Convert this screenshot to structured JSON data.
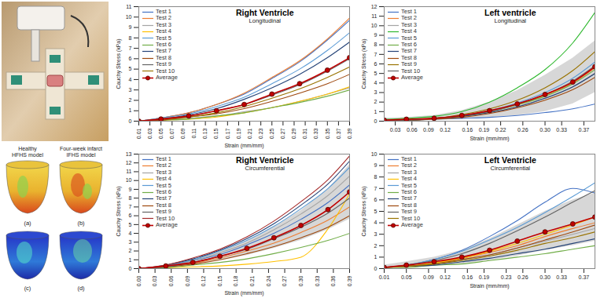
{
  "model_panels": {
    "top_labels": [
      [
        "Healthy",
        "HFHS model"
      ],
      [
        "Four-week infarct",
        "IFHS model"
      ]
    ],
    "panel_labels": [
      "(a)",
      "(b)",
      "(c)",
      "(d)"
    ]
  },
  "chart_data": [
    {
      "type": "line",
      "title": "Right Ventricle",
      "subtitle": "Longitudinal",
      "x_label": "Strain (mm/mm)",
      "y_label": "Cauchy Stress (kPa)",
      "x": [
        0.01,
        0.05,
        0.1,
        0.15,
        0.2,
        0.25,
        0.3,
        0.35,
        0.39
      ],
      "xlim": [
        0.01,
        0.39
      ],
      "xticks": [
        0.01,
        0.03,
        0.05,
        0.07,
        0.09,
        0.11,
        0.13,
        0.15,
        0.17,
        0.19,
        0.21,
        0.23,
        0.25,
        0.27,
        0.29,
        0.31,
        0.33,
        0.35,
        0.37,
        0.39
      ],
      "ylim": [
        0,
        11
      ],
      "yticks": [
        0,
        1,
        2,
        3,
        4,
        5,
        6,
        7,
        8,
        9,
        10,
        11
      ],
      "grid": false,
      "legend": "top-left",
      "series": [
        {
          "name": "Test 1",
          "color": "#4472c4",
          "values": [
            0,
            0.3,
            0.8,
            1.6,
            2.6,
            4.1,
            5.7,
            7.8,
            9.7
          ]
        },
        {
          "name": "Test 2",
          "color": "#ed7d31",
          "values": [
            0,
            0.3,
            0.8,
            1.6,
            2.7,
            4.2,
            5.8,
            7.9,
            9.9
          ]
        },
        {
          "name": "Test 3",
          "color": "#a5a5a5",
          "values": [
            0,
            0.1,
            0.3,
            0.5,
            0.9,
            1.3,
            1.9,
            2.6,
            3.2
          ]
        },
        {
          "name": "Test 4",
          "color": "#ffc000",
          "values": [
            0,
            0.1,
            0.2,
            0.4,
            0.8,
            1.3,
            1.9,
            2.6,
            3.3
          ]
        },
        {
          "name": "Test 5",
          "color": "#5b9bd5",
          "values": [
            0,
            0.3,
            0.7,
            1.4,
            2.3,
            3.6,
            5.0,
            6.8,
            8.5
          ]
        },
        {
          "name": "Test 6",
          "color": "#70ad47",
          "values": [
            0,
            0.1,
            0.2,
            0.5,
            0.8,
            1.3,
            1.8,
            2.4,
            3.0
          ]
        },
        {
          "name": "Test 7",
          "color": "#264478",
          "values": [
            0,
            0.2,
            0.6,
            1.2,
            2.1,
            3.2,
            4.5,
            6.1,
            7.6
          ]
        },
        {
          "name": "Test 8",
          "color": "#9e480e",
          "values": [
            0,
            0.1,
            0.4,
            0.7,
            1.2,
            1.9,
            2.7,
            3.6,
            4.5
          ]
        },
        {
          "name": "Test 9",
          "color": "#636363",
          "values": [
            0,
            0.2,
            0.5,
            1.0,
            1.6,
            2.5,
            3.5,
            4.8,
            6.0
          ]
        },
        {
          "name": "Test 10",
          "color": "#997300",
          "values": [
            0,
            0.2,
            0.4,
            0.8,
            1.4,
            2.2,
            3.1,
            4.2,
            5.2
          ]
        },
        {
          "name": "Average",
          "color": "#c00000",
          "marker": "circle",
          "values": [
            0,
            0.2,
            0.5,
            1.0,
            1.6,
            2.6,
            3.6,
            4.9,
            6.1
          ]
        }
      ]
    },
    {
      "type": "line",
      "title": "Left ventricle",
      "subtitle": "Longitudinal",
      "x_label": "Strain (mm/mm)",
      "y_label": "Cauchy Stress (kPa)",
      "x": [
        0.01,
        0.05,
        0.1,
        0.15,
        0.2,
        0.25,
        0.3,
        0.35,
        0.39
      ],
      "xlim": [
        0.01,
        0.39
      ],
      "xticks": [
        0.03,
        0.06,
        0.09,
        0.12,
        0.16,
        0.19,
        0.22,
        0.26,
        {
          "value": 0.3,
          "label": "0.30"
        },
        0.33,
        0.37
      ],
      "ylim": [
        0,
        12
      ],
      "yticks": [
        0,
        1,
        2,
        3,
        4,
        5,
        6,
        7,
        8,
        9,
        10,
        11,
        12
      ],
      "grid": false,
      "legend": "top-left",
      "series": [
        {
          "name": "Test 1",
          "color": "#4472c4",
          "values": [
            0.1,
            0.1,
            0.2,
            0.3,
            0.4,
            0.6,
            0.9,
            1.3,
            1.8
          ]
        },
        {
          "name": "Test 2",
          "color": "#ed7d31",
          "values": [
            0.1,
            0.1,
            0.3,
            0.5,
            1.0,
            1.7,
            2.7,
            4.0,
            5.6
          ]
        },
        {
          "name": "Test 3",
          "color": "#a5a5a5",
          "values": [
            0.1,
            0.1,
            0.2,
            0.5,
            0.9,
            1.5,
            2.4,
            3.6,
            5.0
          ]
        },
        {
          "name": "Test 4",
          "color": "#2eb82e",
          "values": [
            0.2,
            0.3,
            0.5,
            1.0,
            2.0,
            3.5,
            5.4,
            8.2,
            11.4
          ]
        },
        {
          "name": "Test 5",
          "color": "#5b9bd5",
          "values": [
            0.1,
            0.1,
            0.3,
            0.6,
            1.1,
            1.9,
            3.0,
            4.5,
            6.2
          ]
        },
        {
          "name": "Test 6",
          "color": "#70ad47",
          "values": [
            0.1,
            0.1,
            0.3,
            0.5,
            1.0,
            1.7,
            2.6,
            3.9,
            5.4
          ]
        },
        {
          "name": "Test 7",
          "color": "#264478",
          "values": [
            0.1,
            0.1,
            0.3,
            0.5,
            0.9,
            1.5,
            2.4,
            3.6,
            5.0
          ]
        },
        {
          "name": "Test 8",
          "color": "#9e480e",
          "values": [
            0.1,
            0.1,
            0.2,
            0.4,
            0.8,
            1.4,
            2.2,
            3.3,
            4.6
          ]
        },
        {
          "name": "Test 9",
          "color": "#997300",
          "values": [
            0.1,
            0.2,
            0.3,
            0.7,
            1.3,
            2.2,
            3.5,
            5.3,
            7.3
          ]
        },
        {
          "name": "Test 10",
          "color": "#636363",
          "values": [
            0.1,
            0.1,
            0.3,
            0.6,
            1.0,
            1.8,
            2.8,
            4.2,
            5.8
          ]
        },
        {
          "name": "Average",
          "color": "#c00000",
          "marker": "circle",
          "values": [
            0.1,
            0.2,
            0.3,
            0.6,
            1.1,
            1.8,
            2.8,
            4.1,
            5.7
          ],
          "lower": [
            0,
            0,
            0.1,
            0.2,
            0.4,
            0.6,
            1.0,
            1.8,
            3.0
          ],
          "upper": [
            0.3,
            0.4,
            0.6,
            1.1,
            2.0,
            3.2,
            4.8,
            6.6,
            8.4
          ]
        }
      ]
    },
    {
      "type": "line",
      "title": "Right Ventricle",
      "subtitle": "Circumferential",
      "x_label": "Strain (mm/mm)",
      "y_label": "Cauchy Stress (kPa)",
      "x": [
        0,
        0.05,
        0.1,
        0.15,
        0.2,
        0.25,
        0.3,
        0.35,
        0.39
      ],
      "xlim": [
        0,
        0.39
      ],
      "xticks": [
        {
          "value": 0,
          "label": "0.00"
        },
        0.03,
        0.06,
        0.09,
        0.12,
        0.15,
        0.18,
        0.21,
        0.24,
        0.27,
        {
          "value": 0.3,
          "label": "0.30"
        },
        0.33,
        0.36,
        0.39
      ],
      "ylim": [
        0,
        13
      ],
      "yticks": [
        0,
        1,
        2,
        3,
        4,
        5,
        6,
        7,
        8,
        9,
        10,
        11,
        12,
        13
      ],
      "grid": false,
      "legend": "top-left",
      "series": [
        {
          "name": "Test 1",
          "color": "#4472c4",
          "values": [
            0,
            0.3,
            0.9,
            1.6,
            2.7,
            4.0,
            5.6,
            7.5,
            9.5
          ]
        },
        {
          "name": "Test 2",
          "color": "#ed7d31",
          "values": [
            0,
            0.2,
            0.6,
            1.2,
            2.0,
            2.9,
            4.1,
            5.5,
            7.0
          ]
        },
        {
          "name": "Test 3",
          "color": "#a5a5a5",
          "values": [
            0,
            0.3,
            0.9,
            1.8,
            2.9,
            4.4,
            6.2,
            8.3,
            10.5
          ]
        },
        {
          "name": "Test 4",
          "color": "#ffc000",
          "values": [
            0,
            0.1,
            0.2,
            0.3,
            0.5,
            0.8,
            1.3,
            4.5,
            8.5
          ]
        },
        {
          "name": "Test 5",
          "color": "#5b9bd5",
          "values": [
            0,
            0.3,
            1.0,
            2.0,
            3.2,
            4.8,
            6.8,
            9.1,
            11.5
          ]
        },
        {
          "name": "Test 6",
          "color": "#70ad47",
          "values": [
            0,
            0.1,
            0.4,
            0.7,
            1.1,
            1.7,
            2.4,
            3.2,
            4.0
          ]
        },
        {
          "name": "Test 7",
          "color": "#264478",
          "values": [
            0,
            0.4,
            1.1,
            2.1,
            3.4,
            5.1,
            7.2,
            9.6,
            12.2
          ]
        },
        {
          "name": "Test 8",
          "color": "#9e480e",
          "values": [
            0,
            0.2,
            0.5,
            1.0,
            1.7,
            2.5,
            3.5,
            4.7,
            6.0
          ]
        },
        {
          "name": "Test 9",
          "color": "#636363",
          "values": [
            0,
            0.2,
            0.7,
            1.4,
            2.2,
            3.4,
            4.7,
            6.3,
            8.0
          ]
        },
        {
          "name": "Test 10",
          "color": "#a52a2a",
          "values": [
            0,
            0.4,
            1.2,
            2.2,
            3.6,
            5.4,
            7.6,
            10.1,
            12.8
          ]
        },
        {
          "name": "Average",
          "color": "#c00000",
          "marker": "circle",
          "values": [
            0,
            0.3,
            0.7,
            1.4,
            2.3,
            3.5,
            4.9,
            6.7,
            8.7
          ],
          "lower": [
            0,
            0.2,
            0.5,
            0.9,
            1.5,
            2.3,
            3.2,
            4.4,
            5.6
          ],
          "upper": [
            0,
            0.4,
            0.9,
            1.9,
            3.1,
            4.7,
            6.6,
            9.0,
            11.8
          ]
        }
      ]
    },
    {
      "type": "line",
      "title": "Left Ventricle",
      "subtitle": "Circumferential",
      "x_label": "Strain (mm/mm)",
      "y_label": "Cauchy Stress (kPa)",
      "x": [
        0.01,
        0.05,
        0.1,
        0.15,
        0.2,
        0.25,
        0.3,
        0.35,
        0.39
      ],
      "xlim": [
        0.01,
        0.39
      ],
      "xticks": [
        0.01,
        0.05,
        0.09,
        0.12,
        0.16,
        0.19,
        0.23,
        0.26,
        {
          "value": 0.3,
          "label": "0.30"
        },
        0.33,
        0.37
      ],
      "ylim": [
        0,
        10
      ],
      "yticks": [
        0,
        1,
        2,
        3,
        4,
        5,
        6,
        7,
        8,
        9,
        10
      ],
      "grid": false,
      "legend": "top-left",
      "series": [
        {
          "name": "Test 1",
          "color": "#4472c4",
          "values": [
            0.1,
            0.3,
            0.8,
            1.6,
            2.8,
            4.2,
            5.8,
            7.0,
            6.6
          ]
        },
        {
          "name": "Test 2",
          "color": "#ed7d31",
          "values": [
            0.1,
            0.2,
            0.5,
            0.9,
            1.4,
            2.0,
            2.8,
            3.5,
            4.0
          ]
        },
        {
          "name": "Test 3",
          "color": "#a5a5a5",
          "values": [
            0.1,
            0.2,
            0.4,
            0.8,
            1.2,
            1.8,
            2.4,
            3.0,
            3.5
          ]
        },
        {
          "name": "Test 4",
          "color": "#ffc000",
          "values": [
            0.1,
            0.2,
            0.5,
            0.9,
            1.5,
            2.2,
            3.0,
            3.8,
            4.5
          ]
        },
        {
          "name": "Test 5",
          "color": "#5b9bd5",
          "values": [
            0.1,
            0.3,
            0.8,
            1.5,
            2.5,
            3.6,
            4.9,
            6.3,
            7.5
          ]
        },
        {
          "name": "Test 6",
          "color": "#70ad47",
          "values": [
            0.1,
            0.1,
            0.3,
            0.4,
            0.7,
            1.0,
            1.3,
            1.7,
            2.0
          ]
        },
        {
          "name": "Test 7",
          "color": "#264478",
          "values": [
            0.1,
            0.2,
            0.3,
            0.6,
            0.9,
            1.3,
            1.7,
            2.2,
            2.6
          ]
        },
        {
          "name": "Test 8",
          "color": "#9e480e",
          "values": [
            0.1,
            0.2,
            0.4,
            0.8,
            1.2,
            1.8,
            2.5,
            3.2,
            3.8
          ]
        },
        {
          "name": "Test 9",
          "color": "#636363",
          "values": [
            0.1,
            0.3,
            0.7,
            1.3,
            2.2,
            3.3,
            4.5,
            5.8,
            6.8
          ]
        },
        {
          "name": "Test 10",
          "color": "#997300",
          "values": [
            0.1,
            0.2,
            0.4,
            0.7,
            1.1,
            1.6,
            2.2,
            2.7,
            3.2
          ]
        },
        {
          "name": "Average",
          "color": "#c00000",
          "marker": "circle",
          "values": [
            0.1,
            0.3,
            0.6,
            1.0,
            1.6,
            2.4,
            3.2,
            3.9,
            4.5
          ],
          "lower": [
            0,
            0.1,
            0.2,
            0.4,
            0.7,
            1.1,
            1.6,
            2.0,
            2.4
          ],
          "upper": [
            0.3,
            0.6,
            1.0,
            1.6,
            2.6,
            3.8,
            5.0,
            6.0,
            6.6
          ]
        }
      ]
    }
  ]
}
